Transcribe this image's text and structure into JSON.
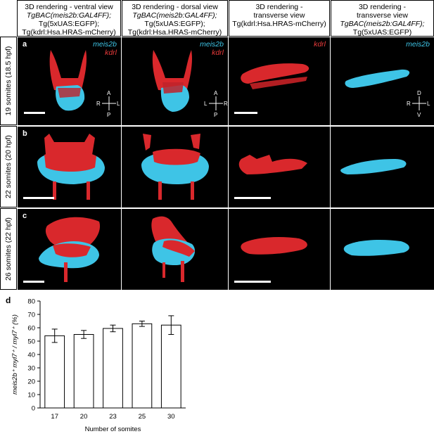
{
  "headers": [
    {
      "lines": [
        "3D rendering - ventral view",
        "TgBAC(meis2b:GAL4FF);",
        "Tg(5xUAS:EGFP);",
        "Tg(kdrl:Hsa.HRAS-mCherry)"
      ]
    },
    {
      "lines": [
        "3D rendering - dorsal view",
        "TgBAC(meis2b:GAL4FF);",
        "Tg(5xUAS:EGFP);",
        "Tg(kdrl:Hsa.HRAS-mCherry)"
      ]
    },
    {
      "lines": [
        "3D rendering -",
        "transverse view",
        "Tg(kdrl:Hsa.HRAS-mCherry)",
        ""
      ]
    },
    {
      "lines": [
        "3D rendering -",
        "transverse view",
        "TgBAC(meis2b:GAL4FF);",
        "Tg(5xUAS:EGFP)"
      ]
    }
  ],
  "rows": [
    {
      "label": "19 somites (18.5 hpf)",
      "panel_letter": "a"
    },
    {
      "label": "22 somites (20 hpf)",
      "panel_letter": "b"
    },
    {
      "label": "26 somites (22 hpf)",
      "panel_letter": "c"
    }
  ],
  "legend": {
    "meis2b": "meis2b",
    "kdrl": "kdrl"
  },
  "orientation": {
    "ventral": {
      "top": "A",
      "bottom": "P",
      "left": "R",
      "right": "L"
    },
    "dorsal": {
      "top": "A",
      "bottom": "P",
      "left": "L",
      "right": "R"
    },
    "transverse": {
      "top": "D",
      "bottom": "V",
      "left": "R",
      "right": "L"
    }
  },
  "colors": {
    "meis2b": "#3ec4e6",
    "kdrl": "#d9282c",
    "panel_bg": "#000000"
  },
  "chart_panel_letter": "d",
  "chart_data": {
    "type": "bar",
    "categories": [
      "17",
      "20",
      "23",
      "25",
      "30"
    ],
    "values": [
      54,
      55,
      59.5,
      63,
      62
    ],
    "errors": [
      5,
      3,
      2.5,
      2,
      7
    ],
    "xlabel": "Number of somites",
    "ylabel": "meis2b⁺ myl7⁺ / myl7⁺ (%)",
    "ylim": [
      0,
      80
    ],
    "yticks": [
      0,
      10,
      20,
      30,
      40,
      50,
      60,
      70,
      80
    ],
    "grid": false
  }
}
